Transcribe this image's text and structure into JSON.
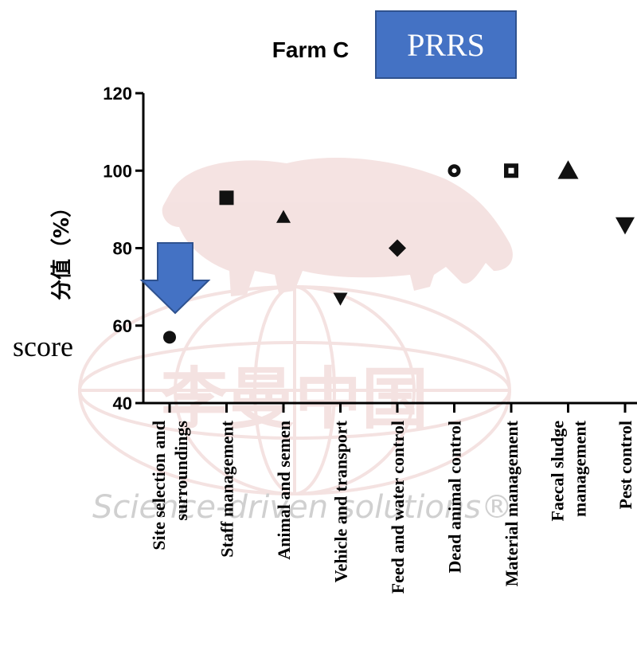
{
  "title": "Farm C",
  "badge": {
    "label": "PRRS",
    "color": "#4472c4",
    "text_color": "#ffffff"
  },
  "annotation": {
    "label": "score",
    "arrow_color": "#4472c4"
  },
  "watermark": {
    "chinese": "李曼中国",
    "tagline": "Science-driven solutions®"
  },
  "chart_data": {
    "type": "scatter",
    "title": "Farm C",
    "ylabel": "分值（%）",
    "xlabel": "",
    "ylim": [
      40,
      120
    ],
    "yticks": [
      40,
      60,
      80,
      100,
      120
    ],
    "grid": false,
    "categories": [
      "Site selection and surroundings",
      "Staff management",
      "Animal and semen",
      "Vehicle and transport",
      "Feed and water control",
      "Dead animal control",
      "Material management",
      "Faecal sludge management",
      "Pest control"
    ],
    "category_lines": [
      [
        "Site selection and",
        "surroundings"
      ],
      [
        "Staff management"
      ],
      [
        "Animal and semen"
      ],
      [
        "Vehicle and transport"
      ],
      [
        "Feed and water control"
      ],
      [
        "Dead animal control"
      ],
      [
        "Material management"
      ],
      [
        "Faecal sludge",
        "management"
      ],
      [
        "Pest control"
      ]
    ],
    "values": [
      57,
      93,
      88,
      67,
      80,
      100,
      100,
      100,
      86
    ],
    "markers": [
      "circle",
      "square",
      "triangle-up",
      "triangle-down",
      "diamond",
      "circle-dot",
      "square-dot",
      "triangle-up",
      "triangle-down"
    ],
    "marker_color": "#111111"
  }
}
